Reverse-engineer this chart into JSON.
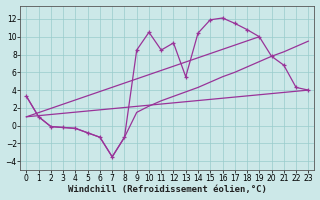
{
  "xlabel": "Windchill (Refroidissement éolien,°C)",
  "bg_color": "#cce8e8",
  "line_color": "#993399",
  "grid_color": "#99cccc",
  "xlim": [
    -0.5,
    23.5
  ],
  "ylim": [
    -5,
    13.5
  ],
  "xticks": [
    0,
    1,
    2,
    3,
    4,
    5,
    6,
    7,
    8,
    9,
    10,
    11,
    12,
    13,
    14,
    15,
    16,
    17,
    18,
    19,
    20,
    21,
    22,
    23
  ],
  "yticks": [
    -4,
    -2,
    0,
    2,
    4,
    6,
    8,
    10,
    12
  ],
  "line1_x": [
    0,
    1,
    2,
    3,
    4,
    5,
    6,
    7,
    8,
    9,
    10,
    11,
    12,
    13,
    14,
    15,
    16,
    17,
    18,
    19,
    20,
    21,
    22,
    23
  ],
  "line1_y": [
    3.3,
    1.0,
    -0.1,
    -0.2,
    -0.3,
    -0.8,
    -1.3,
    -3.5,
    -1.3,
    8.5,
    10.5,
    8.5,
    9.3,
    5.5,
    10.4,
    11.9,
    12.1,
    11.5,
    10.8,
    10.0,
    7.8,
    6.8,
    4.3,
    4.0
  ],
  "line2_x": [
    0,
    1,
    2,
    3,
    4,
    5,
    6,
    7,
    8,
    9,
    10,
    11,
    12,
    13,
    14,
    15,
    16,
    17,
    18,
    19,
    20,
    21,
    22,
    23
  ],
  "line2_y": [
    3.3,
    1.0,
    -0.1,
    -0.2,
    -0.3,
    -0.8,
    -1.3,
    -3.5,
    -1.3,
    1.5,
    2.2,
    2.8,
    3.3,
    3.8,
    4.3,
    4.9,
    5.5,
    6.0,
    6.6,
    7.2,
    7.8,
    8.3,
    8.9,
    9.5
  ],
  "line3_x": [
    0,
    23
  ],
  "line3_y": [
    1.0,
    4.0
  ],
  "line4_x": [
    0,
    19
  ],
  "line4_y": [
    1.0,
    10.0
  ],
  "axis_color": "#555555",
  "tick_fontsize": 5.5,
  "xlabel_fontsize": 6.5
}
